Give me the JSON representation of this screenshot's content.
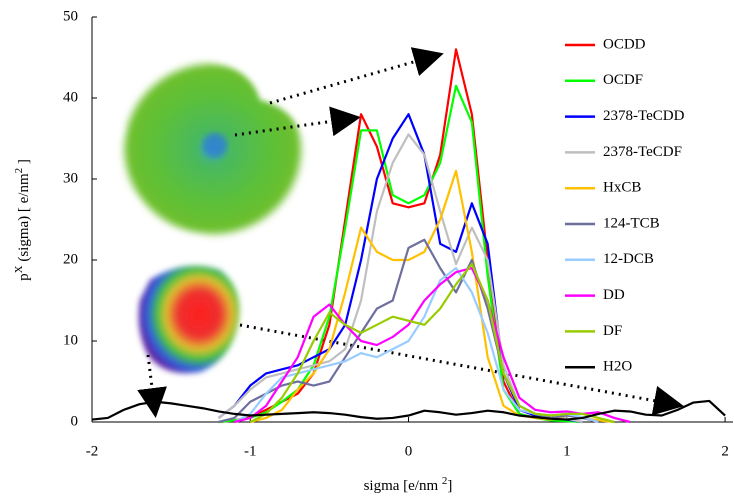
{
  "chart_data": {
    "type": "line",
    "x_label": [
      "sigma [e/nm ",
      "2",
      "]"
    ],
    "y_label": [
      "p",
      "X",
      " (sigma) [ e/nm",
      "2",
      " ]"
    ],
    "x": [
      -2,
      -1.9,
      -1.8,
      -1.7,
      -1.6,
      -1.5,
      -1.4,
      -1.3,
      -1.2,
      -1.1,
      -1,
      -0.9,
      -0.8,
      -0.7,
      -0.6,
      -0.5,
      -0.4,
      -0.3,
      -0.2,
      -0.1,
      0,
      0.1,
      0.2,
      0.3,
      0.4,
      0.5,
      0.6,
      0.7,
      0.8,
      0.9,
      1,
      1.1,
      1.2,
      1.3,
      1.4,
      1.5,
      1.6,
      1.7,
      1.8,
      1.9,
      2
    ],
    "xlim": [
      -2,
      2.05
    ],
    "xticks": [
      -2,
      -1,
      0,
      1,
      2
    ],
    "ylim": [
      0,
      50
    ],
    "yticks": [
      0,
      10,
      20,
      30,
      40,
      50
    ],
    "grid": false,
    "legend": "upper-right",
    "series": [
      {
        "name": "OCDD",
        "color": "#ff0000",
        "values": [
          null,
          null,
          null,
          null,
          null,
          null,
          null,
          null,
          0,
          0.2,
          0.6,
          1.5,
          2.5,
          3.5,
          6,
          12,
          25,
          38,
          34,
          27,
          26.5,
          27,
          33,
          46,
          38,
          20,
          5,
          1,
          0.5,
          0.3,
          0.2,
          0,
          null,
          null,
          null,
          null,
          null,
          null,
          null,
          null,
          null
        ]
      },
      {
        "name": "OCDF",
        "color": "#00ff00",
        "values": [
          null,
          null,
          null,
          null,
          null,
          null,
          null,
          null,
          0,
          0.2,
          0.5,
          1.2,
          2.5,
          4,
          7,
          13,
          24,
          36,
          36,
          28,
          27,
          28,
          32,
          41.5,
          37,
          18,
          4,
          1,
          0.5,
          0.2,
          0.1,
          0,
          null,
          null,
          null,
          null,
          null,
          null,
          null,
          null,
          null
        ]
      },
      {
        "name": "2378-TeCDD",
        "color": "#0000ff",
        "values": [
          null,
          null,
          null,
          null,
          null,
          null,
          null,
          null,
          0.5,
          2,
          4.5,
          6,
          6.5,
          7,
          8,
          9,
          12,
          20,
          30,
          35,
          38,
          33,
          22,
          21,
          27,
          22,
          6,
          1.5,
          0.8,
          0.5,
          0.3,
          0,
          null,
          null,
          null,
          null,
          null,
          null,
          null,
          null,
          null
        ]
      },
      {
        "name": "2378-TeCDF",
        "color": "#bfbfbf",
        "values": [
          null,
          null,
          null,
          null,
          null,
          null,
          null,
          null,
          0.5,
          2,
          4,
          5.5,
          6,
          6.5,
          7,
          7.5,
          9,
          15,
          26,
          32,
          35.5,
          33,
          26,
          19.5,
          24,
          20,
          7,
          2,
          1,
          0.6,
          0.4,
          0,
          null,
          null,
          null,
          null,
          null,
          null,
          null,
          null,
          null
        ]
      },
      {
        "name": "HxCB",
        "color": "#ffc000",
        "values": [
          null,
          null,
          null,
          null,
          null,
          null,
          null,
          null,
          null,
          null,
          0,
          0.5,
          1.5,
          4,
          6,
          9,
          16,
          24,
          21,
          20,
          20,
          21,
          25,
          31,
          21,
          8,
          2,
          0.8,
          0.5,
          0.3,
          0.8,
          0.5,
          0.2,
          0,
          null,
          null,
          null,
          null,
          null,
          null,
          null
        ]
      },
      {
        "name": "124-TCB",
        "color": "#6f6f9f",
        "values": [
          null,
          null,
          null,
          null,
          null,
          null,
          null,
          null,
          0,
          0.5,
          2.5,
          3.5,
          4.5,
          5,
          4.5,
          5,
          8,
          11,
          14,
          15,
          21.5,
          22.5,
          19,
          16,
          20,
          14,
          6,
          2,
          1,
          0.5,
          0.8,
          0.5,
          0,
          null,
          null,
          null,
          null,
          null,
          null,
          null,
          null
        ]
      },
      {
        "name": "12-DCB",
        "color": "#99ccff",
        "values": [
          null,
          null,
          null,
          null,
          null,
          null,
          null,
          null,
          null,
          0,
          1,
          3.5,
          5.5,
          6,
          6.5,
          7,
          7.5,
          8.5,
          8,
          9,
          10,
          13,
          17.5,
          19,
          16,
          11,
          4,
          1.5,
          1,
          0.8,
          1,
          0.6,
          0,
          null,
          null,
          null,
          null,
          null,
          null,
          null,
          null
        ]
      },
      {
        "name": "DD",
        "color": "#ff00ff",
        "values": [
          null,
          null,
          null,
          null,
          null,
          null,
          null,
          null,
          null,
          0,
          0.5,
          2,
          5,
          8,
          13,
          14.5,
          12,
          10,
          9.5,
          10.5,
          12,
          15,
          17,
          18.5,
          19,
          15,
          8,
          3,
          1.5,
          1.2,
          1.3,
          1,
          1.2,
          0.5,
          0,
          null,
          null,
          null,
          null,
          null,
          null
        ]
      },
      {
        "name": "DF",
        "color": "#99cc00",
        "values": [
          null,
          null,
          null,
          null,
          null,
          null,
          null,
          null,
          null,
          null,
          0,
          1,
          3,
          6,
          10,
          13.5,
          12,
          11,
          12,
          13,
          12.5,
          12,
          14,
          17,
          19.5,
          15,
          6,
          2,
          1,
          0.8,
          1,
          1,
          0.5,
          0,
          null,
          null,
          null,
          null,
          null,
          null,
          null
        ]
      },
      {
        "name": "H2O",
        "color": "#000000",
        "values": [
          0.3,
          0.5,
          1.5,
          2.2,
          2.5,
          2.3,
          2,
          1.7,
          1.3,
          1,
          0.8,
          0.9,
          1,
          1.1,
          1.2,
          1.1,
          0.9,
          0.6,
          0.4,
          0.5,
          0.8,
          1.4,
          1.2,
          0.9,
          1.1,
          1.4,
          1.2,
          0.8,
          0.6,
          0.4,
          0.3,
          0.5,
          1,
          1.4,
          1.3,
          0.9,
          0.8,
          1.5,
          2.4,
          2.6,
          0.8
        ]
      }
    ]
  }
}
